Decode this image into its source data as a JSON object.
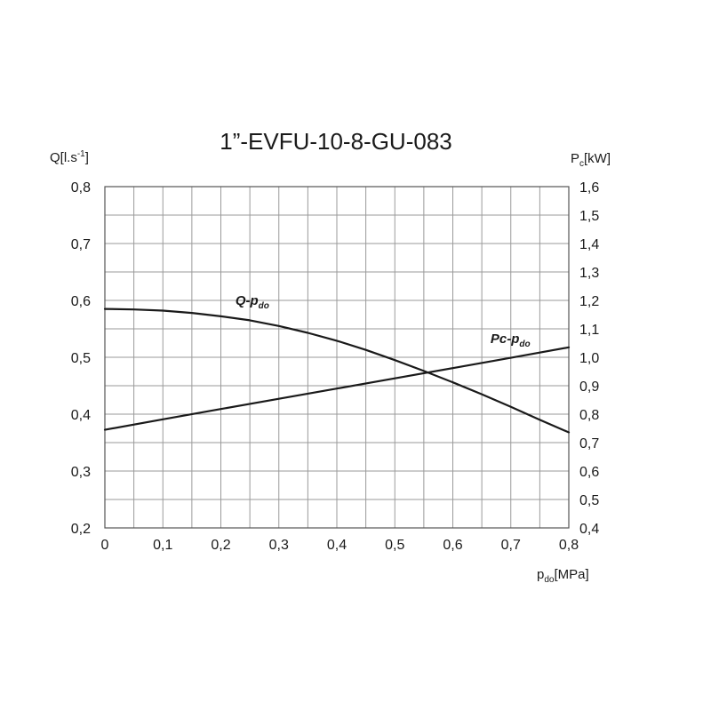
{
  "chart_data": {
    "type": "line",
    "title": "1”-EVFU-10-8-GU-083",
    "xlabel": {
      "main": "p",
      "sub": "do",
      "unit": "[MPa]"
    },
    "ylabel_left": {
      "main": "Q[l.s",
      "sup": "-1",
      "tail": "]"
    },
    "ylabel_right": {
      "main": "P",
      "sub": "c",
      "unit": "[kW]"
    },
    "xlim": [
      0,
      0.8
    ],
    "ylim_left": [
      0.2,
      0.8
    ],
    "ylim_right": [
      0.4,
      1.6
    ],
    "x_ticks": [
      0,
      0.1,
      0.2,
      0.3,
      0.4,
      0.5,
      0.6,
      0.7,
      0.8
    ],
    "x_tick_labels": [
      "0",
      "0,1",
      "0,2",
      "0,3",
      "0,4",
      "0,5",
      "0,6",
      "0,7",
      "0,8"
    ],
    "y_left_ticks": [
      0.2,
      0.3,
      0.4,
      0.5,
      0.6,
      0.7,
      0.8
    ],
    "y_left_tick_labels": [
      "0,2",
      "0,3",
      "0,4",
      "0,5",
      "0,6",
      "0,7",
      "0,8"
    ],
    "y_right_ticks": [
      0.4,
      0.5,
      0.6,
      0.7,
      0.8,
      0.9,
      1.0,
      1.1,
      1.2,
      1.3,
      1.4,
      1.5,
      1.6
    ],
    "y_right_tick_labels": [
      "0,4",
      "0,5",
      "0,6",
      "0,7",
      "0,8",
      "0,9",
      "1,0",
      "1,1",
      "1,2",
      "1,3",
      "1,4",
      "1,5",
      "1,6"
    ],
    "grid": true,
    "series": [
      {
        "name": "Q-p",
        "name_sub": "do",
        "axis": "left",
        "x": [
          0.0,
          0.05,
          0.1,
          0.15,
          0.2,
          0.25,
          0.3,
          0.35,
          0.4,
          0.45,
          0.5,
          0.55,
          0.6,
          0.65,
          0.7,
          0.75,
          0.8
        ],
        "y": [
          0.585,
          0.584,
          0.582,
          0.578,
          0.572,
          0.565,
          0.555,
          0.543,
          0.529,
          0.513,
          0.495,
          0.476,
          0.456,
          0.435,
          0.413,
          0.39,
          0.368
        ]
      },
      {
        "name": "Pc-p",
        "name_sub": "do",
        "axis": "right",
        "x": [
          0.0,
          0.1,
          0.2,
          0.3,
          0.4,
          0.5,
          0.6,
          0.7,
          0.8
        ],
        "y": [
          0.745,
          0.782,
          0.818,
          0.854,
          0.89,
          0.926,
          0.962,
          0.998,
          1.035
        ]
      }
    ]
  }
}
